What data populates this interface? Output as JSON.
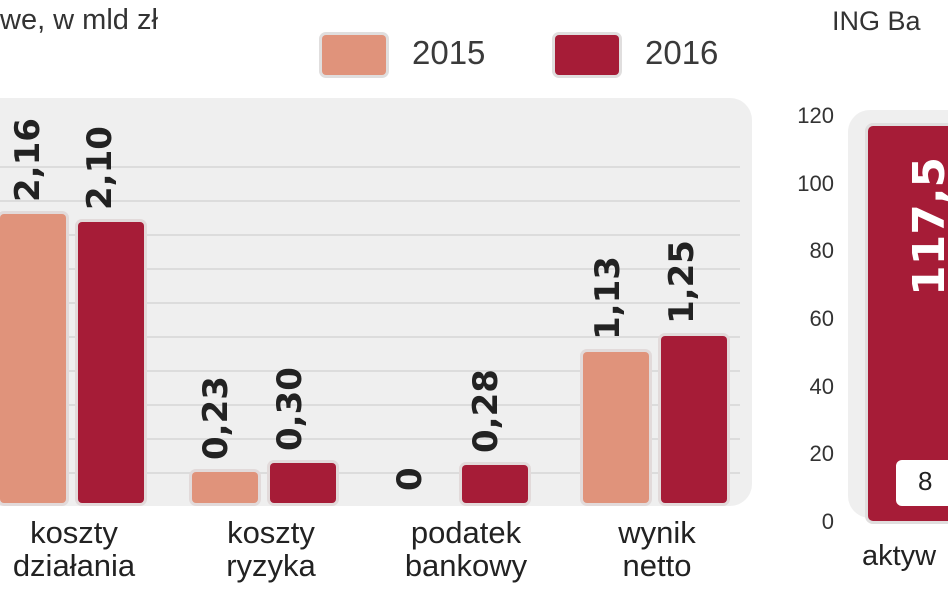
{
  "chart_data": [
    {
      "type": "bar",
      "title": "",
      "subtitle_fragment": "we, w mld zł",
      "categories": [
        "koszty\ndziałania",
        "koszty\nryzyka",
        "podatek\nbankowy",
        "wynik\nnetto"
      ],
      "series": [
        {
          "name": "2015",
          "color": "#e0937b",
          "values": [
            2.16,
            0.23,
            0,
            1.13
          ],
          "labels": [
            "2,16",
            "0,23",
            "0",
            "1,13"
          ]
        },
        {
          "name": "2016",
          "color": "#a61c37",
          "values": [
            2.1,
            0.3,
            0.28,
            1.25
          ],
          "labels": [
            "2,10",
            "0,30",
            "0,28",
            "1,25"
          ]
        }
      ],
      "legend": "top-right",
      "grid": true
    },
    {
      "type": "bar",
      "title_fragment": "ING Ba",
      "categories": [
        "aktyw"
      ],
      "series": [
        {
          "values": [
            117.5
          ],
          "labels": [
            "117,5"
          ],
          "color": "#a61c37"
        }
      ],
      "inner_box_label": "8",
      "yticks": [
        "120",
        "100",
        "80",
        "60",
        "40",
        "20",
        "0"
      ],
      "ylim": [
        0,
        120
      ]
    }
  ]
}
